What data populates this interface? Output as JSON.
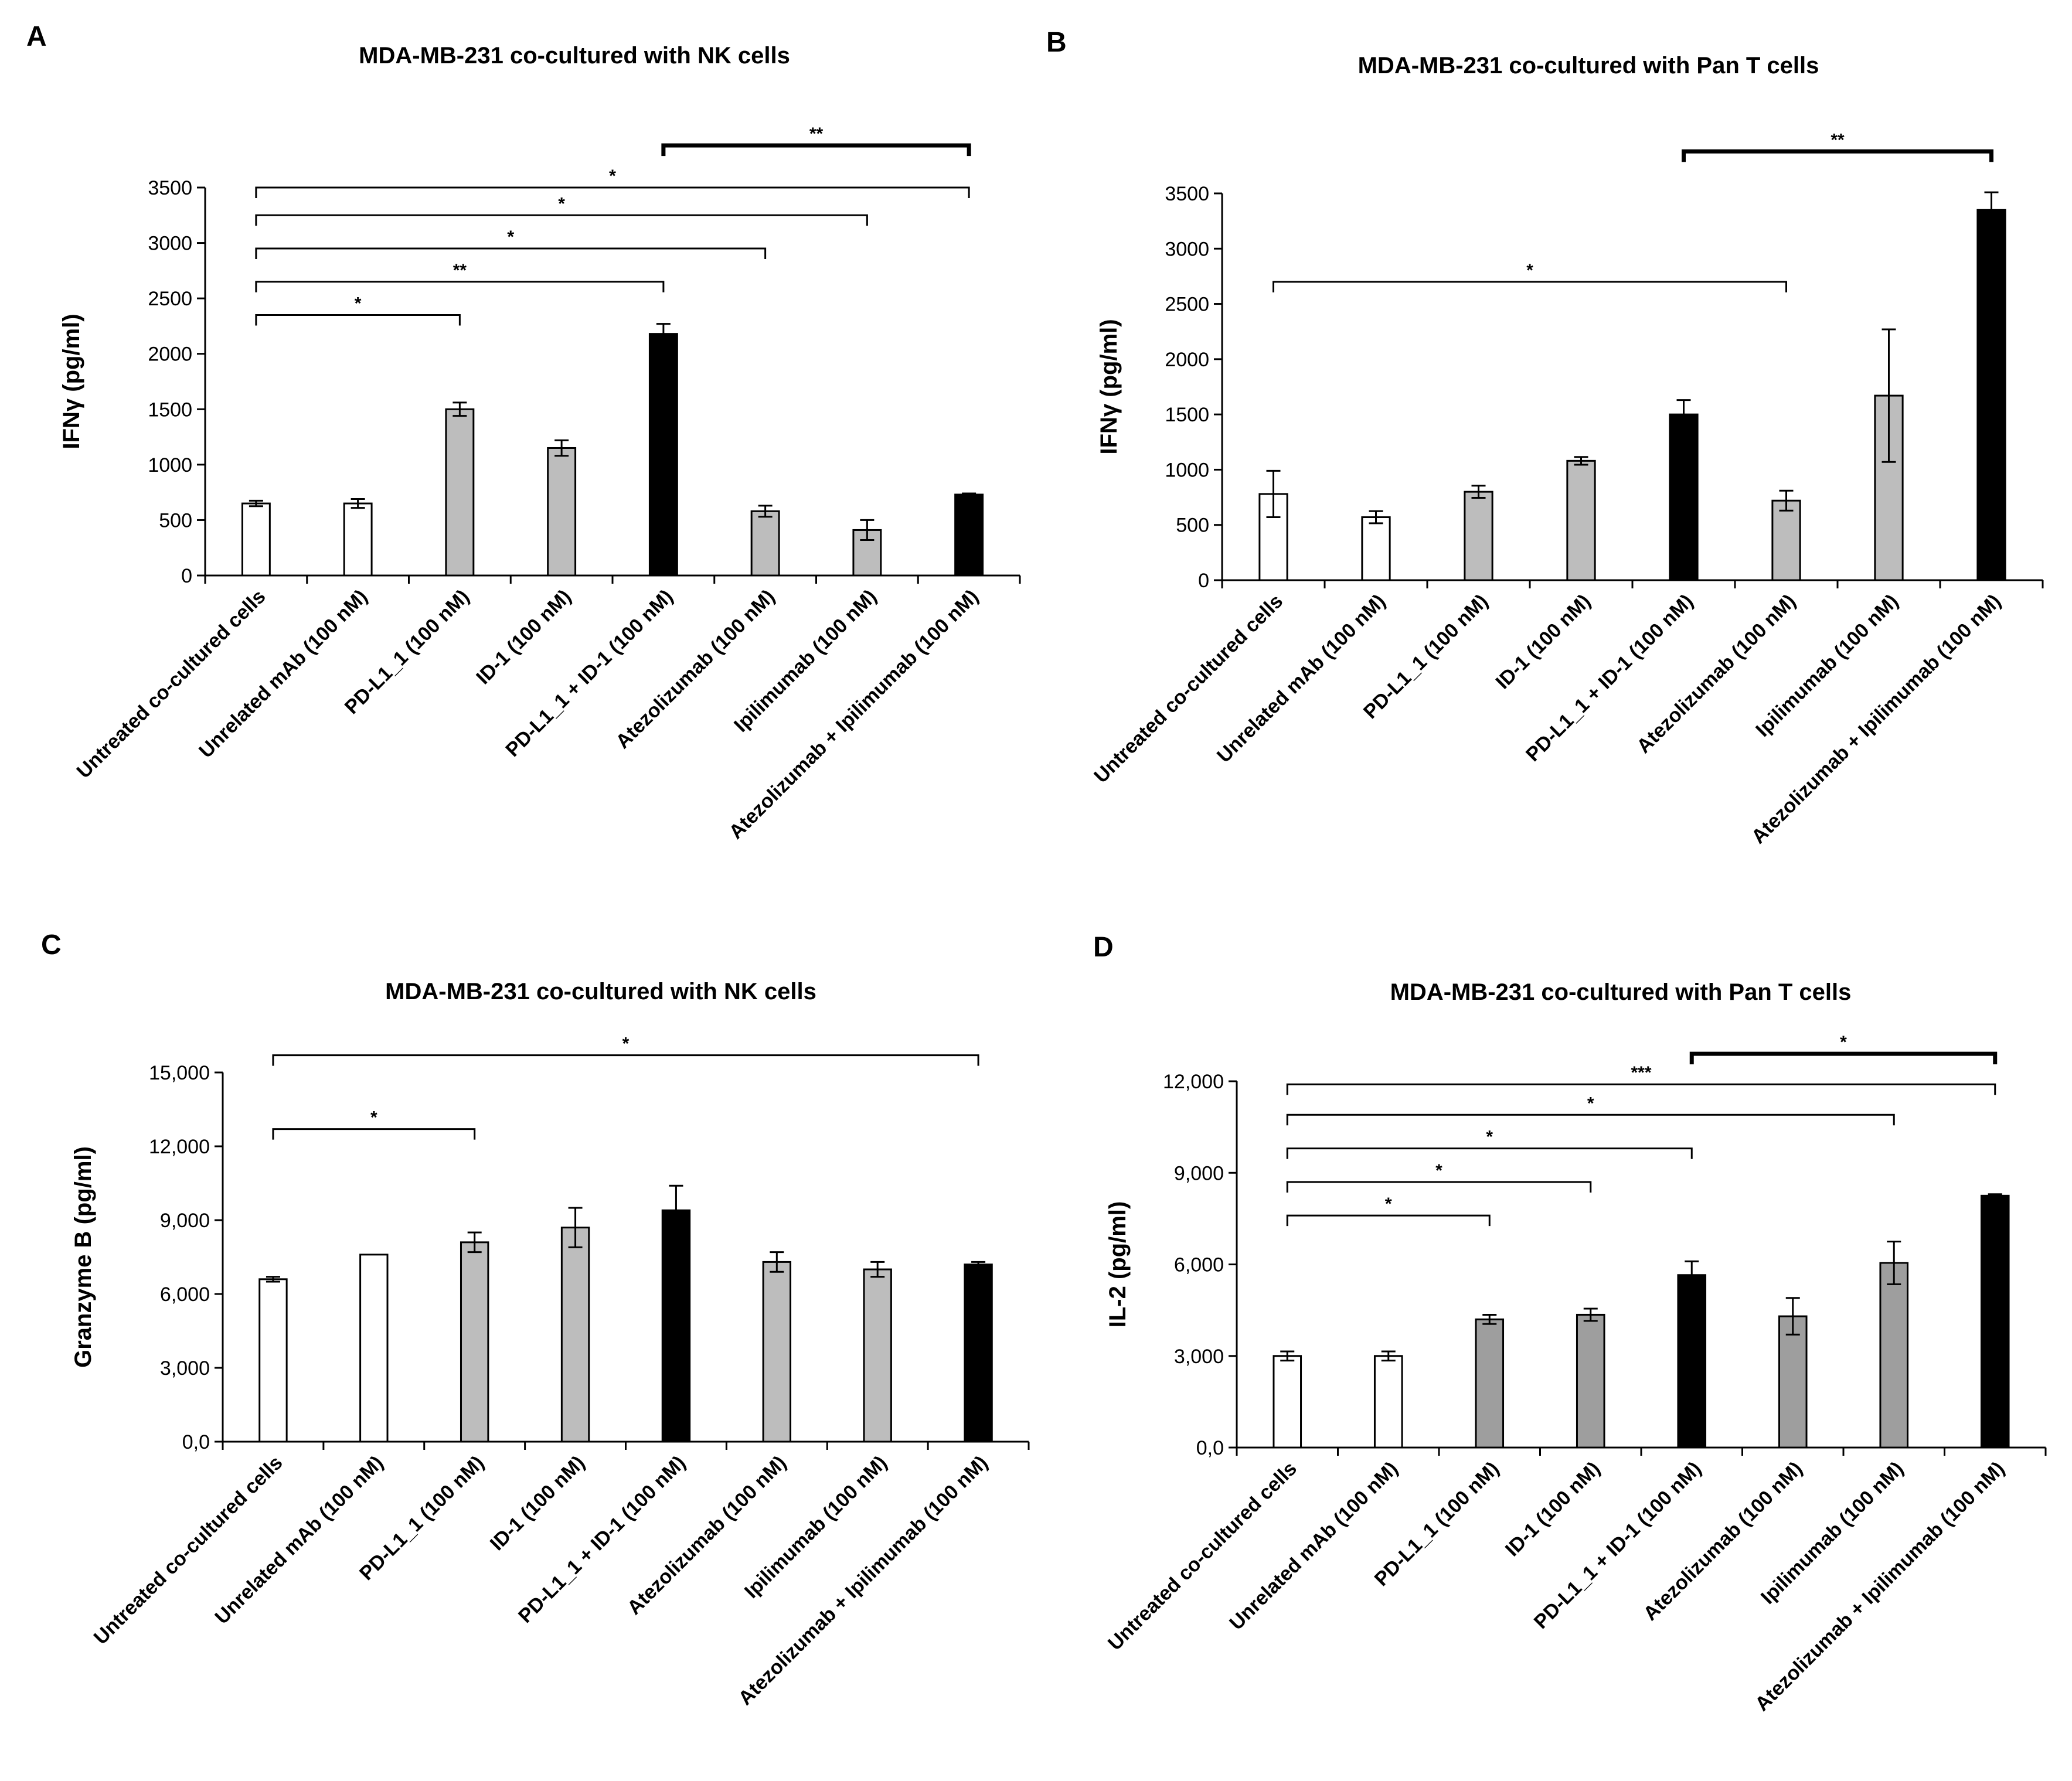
{
  "chart_data": [
    {
      "panel": "A",
      "type": "bar",
      "title": "MDA-MB-231 co-cultured with NK cells",
      "ylabel": "IFNγ (pg/ml)",
      "ylim": [
        0,
        3500
      ],
      "yticks": [
        "0",
        "500",
        "1000",
        "1500",
        "2000",
        "2500",
        "3000",
        "3500"
      ],
      "categories": [
        "Untreated co-cultured cells",
        "Unrelated mAb (100 nM)",
        "PD-L1_1 (100 nM)",
        "ID-1 (100 nM)",
        "PD-L1_1 + ID-1 (100 nM)",
        "Atezolizumab (100 nM)",
        "Ipilimumab (100 nM)",
        "Atezolizumab + Ipilimumab (100 nM)"
      ],
      "values": [
        650,
        650,
        1500,
        1150,
        2180,
        580,
        410,
        730
      ],
      "errors": [
        25,
        40,
        60,
        70,
        90,
        50,
        90,
        10
      ],
      "bar_fills": [
        "white",
        "white",
        "gray",
        "gray",
        "black",
        "gray",
        "gray",
        "black"
      ],
      "significance": [
        {
          "from": 0,
          "to": 2,
          "label": "*",
          "y": 2350,
          "bold": false
        },
        {
          "from": 0,
          "to": 4,
          "label": "**",
          "y": 2650,
          "bold": false
        },
        {
          "from": 0,
          "to": 5,
          "label": "*",
          "y": 2950,
          "bold": false
        },
        {
          "from": 0,
          "to": 6,
          "label": "*",
          "y": 3250,
          "bold": false
        },
        {
          "from": 0,
          "to": 7,
          "label": "*",
          "y": 3500,
          "bold": false
        },
        {
          "from": 4,
          "to": 7,
          "label": "**",
          "y": 3880,
          "bold": true
        }
      ]
    },
    {
      "panel": "B",
      "type": "bar",
      "title": "MDA-MB-231 co-cultured with Pan T cells",
      "ylabel": "IFNγ (pg/ml)",
      "ylim": [
        0,
        3500
      ],
      "yticks": [
        "0",
        "500",
        "1000",
        "1500",
        "2000",
        "2500",
        "3000",
        "3500"
      ],
      "categories": [
        "Untreated co-cultured cells",
        "Unrelated mAb (100 nM)",
        "PD-L1_1 (100 nM)",
        "ID-1 (100 nM)",
        "PD-L1_1 + ID-1 (100 nM)",
        "Atezolizumab (100 nM)",
        "Ipilimumab (100 nM)",
        "Atezolizumab + Ipilimumab (100 nM)"
      ],
      "values": [
        780,
        570,
        800,
        1080,
        1500,
        720,
        1670,
        3350
      ],
      "errors": [
        210,
        55,
        55,
        35,
        130,
        90,
        600,
        160
      ],
      "bar_fills": [
        "white",
        "white",
        "gray",
        "gray",
        "black",
        "gray",
        "gray",
        "black"
      ],
      "significance": [
        {
          "from": 0,
          "to": 5,
          "label": "*",
          "y": 2700,
          "bold": false
        },
        {
          "from": 4,
          "to": 7,
          "label": "**",
          "y": 3880,
          "bold": true
        }
      ]
    },
    {
      "panel": "C",
      "type": "bar",
      "title": "MDA-MB-231 co-cultured with NK cells",
      "ylabel": "Granzyme B (pg/ml)",
      "ylim": [
        0,
        15000
      ],
      "yticks": [
        "0,0",
        "3,000",
        "6,000",
        "9,000",
        "12,000",
        "15,000"
      ],
      "categories": [
        "Untreated co-cultured cells",
        "Unrelated mAb (100 nM)",
        "PD-L1_1 (100 nM)",
        "ID-1 (100 nM)",
        "PD-L1_1 + ID-1 (100 nM)",
        "Atezolizumab (100 nM)",
        "Ipilimumab (100 nM)",
        "Atezolizumab + Ipilimumab (100 nM)"
      ],
      "values": [
        6600,
        7600,
        8100,
        8700,
        9400,
        7300,
        7000,
        7200
      ],
      "errors": [
        100,
        0,
        400,
        800,
        1000,
        400,
        300,
        100
      ],
      "bar_fills": [
        "white",
        "white",
        "gray",
        "gray",
        "black",
        "gray",
        "gray",
        "black"
      ],
      "significance": [
        {
          "from": 0,
          "to": 2,
          "label": "*",
          "y": 12700,
          "bold": false
        },
        {
          "from": 0,
          "to": 7,
          "label": "*",
          "y": 15700,
          "bold": false
        }
      ]
    },
    {
      "panel": "D",
      "type": "bar",
      "title": "MDA-MB-231 co-cultured with Pan T cells",
      "ylabel": "IL-2 (pg/ml)",
      "ylim": [
        0,
        12000
      ],
      "yticks": [
        "0,0",
        "3,000",
        "6,000",
        "9,000",
        "12,000"
      ],
      "categories": [
        "Untreated co-cultured cells",
        "Unrelated mAb (100 nM)",
        "PD-L1_1 (100 nM)",
        "ID-1 (100 nM)",
        "PD-L1_1 + ID-1 (100 nM)",
        "Atezolizumab (100 nM)",
        "Ipilimumab (100 nM)",
        "Atezolizumab + Ipilimumab (100 nM)"
      ],
      "values": [
        3000,
        3000,
        4200,
        4350,
        5650,
        4300,
        6050,
        8250
      ],
      "errors": [
        150,
        150,
        150,
        200,
        450,
        600,
        700,
        50
      ],
      "bar_fills": [
        "white",
        "white",
        "darkgray",
        "darkgray",
        "black",
        "darkgray",
        "darkgray",
        "black"
      ],
      "significance": [
        {
          "from": 0,
          "to": 2,
          "label": "*",
          "y": 7600,
          "bold": false
        },
        {
          "from": 0,
          "to": 3,
          "label": "*",
          "y": 8700,
          "bold": false
        },
        {
          "from": 0,
          "to": 4,
          "label": "*",
          "y": 9800,
          "bold": false
        },
        {
          "from": 0,
          "to": 6,
          "label": "*",
          "y": 10900,
          "bold": false
        },
        {
          "from": 0,
          "to": 7,
          "label": "***",
          "y": 11900,
          "bold": false
        },
        {
          "from": 4,
          "to": 7,
          "label": "*",
          "y": 12900,
          "bold": true
        }
      ]
    }
  ],
  "colors": {
    "white": "#ffffff",
    "gray": "#bdbdbd",
    "darkgray": "#9e9e9e",
    "black": "#000000",
    "stroke": "#000000"
  }
}
